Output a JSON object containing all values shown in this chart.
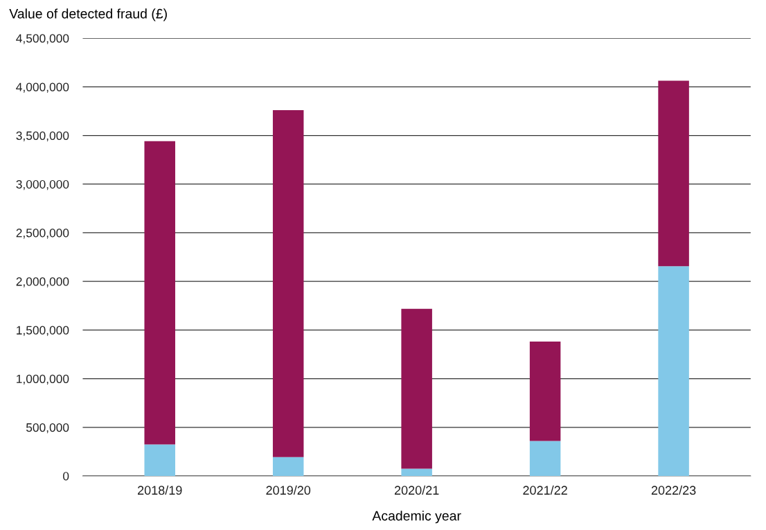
{
  "chart_data": {
    "type": "bar",
    "stacked": true,
    "ylabel": "Value of detected fraud (£)",
    "xlabel": "Academic year",
    "categories": [
      "2018/19",
      "2019/20",
      "2020/21",
      "2021/22",
      "2022/23"
    ],
    "series": [
      {
        "color": "#82c8e8",
        "values": [
          324000,
          193000,
          74000,
          360000,
          2155000
        ]
      },
      {
        "color": "#941555",
        "values": [
          3117000,
          3567000,
          1643000,
          1021000,
          1908000
        ]
      }
    ],
    "ylim": [
      0,
      4500000
    ],
    "yticks": [
      {
        "value": 0,
        "label": "0"
      },
      {
        "value": 500000,
        "label": "500,000"
      },
      {
        "value": 1000000,
        "label": "1,000,000"
      },
      {
        "value": 1500000,
        "label": "1,500,000"
      },
      {
        "value": 2000000,
        "label": "2,000,000"
      },
      {
        "value": 2500000,
        "label": "2,500,000"
      },
      {
        "value": 3000000,
        "label": "3,000,000"
      },
      {
        "value": 3500000,
        "label": "3,500,000"
      },
      {
        "value": 4000000,
        "label": "4,000,000"
      },
      {
        "value": 4500000,
        "label": "4,500,000"
      }
    ],
    "grid": "y"
  }
}
